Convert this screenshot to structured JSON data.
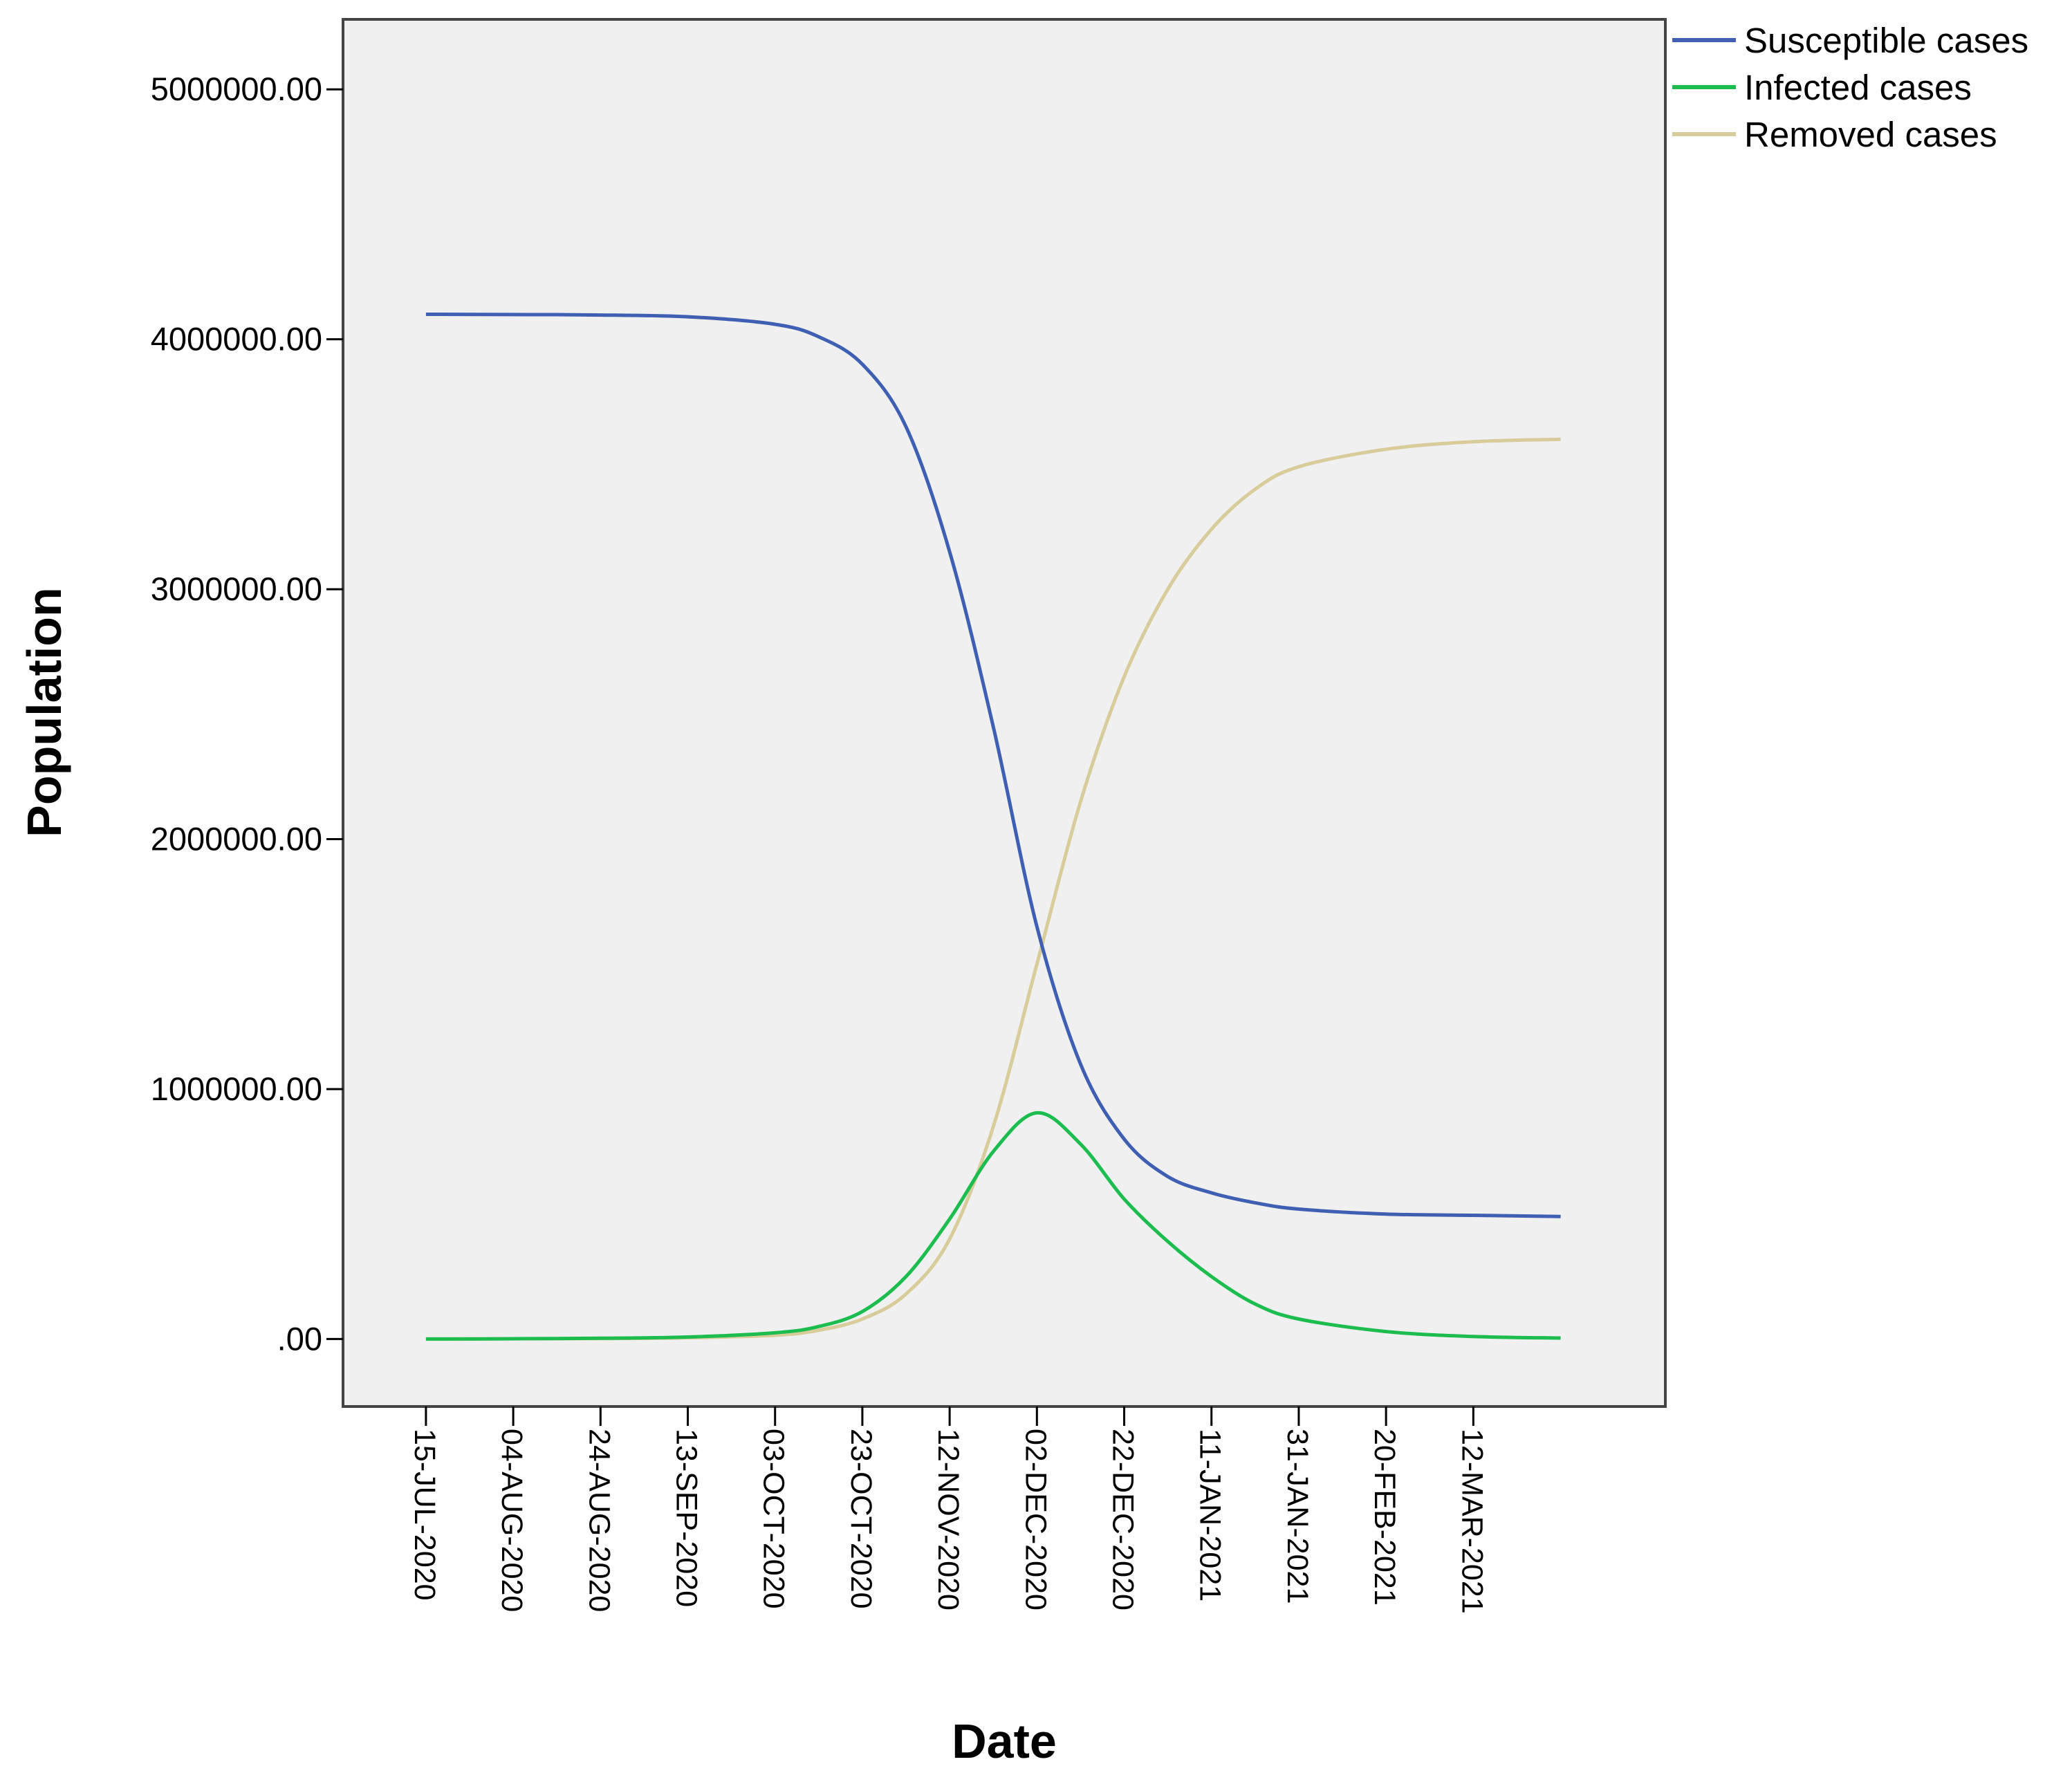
{
  "chart_data": {
    "type": "line",
    "xlabel": "Date",
    "ylabel": "Population",
    "ylim": [
      -270000,
      5280000
    ],
    "xlim": [
      "2020-06-26",
      "2021-04-25"
    ],
    "grid": false,
    "legend_position": "top-right",
    "plot_background": "#f0f0f0",
    "x_ticks": [
      "15-JUL-2020",
      "04-AUG-2020",
      "24-AUG-2020",
      "13-SEP-2020",
      "03-OCT-2020",
      "23-OCT-2020",
      "12-NOV-2020",
      "02-DEC-2020",
      "22-DEC-2020",
      "11-JAN-2021",
      "31-JAN-2021",
      "20-FEB-2021",
      "12-MAR-2021"
    ],
    "x_tick_dates": [
      "2020-07-15",
      "2020-08-04",
      "2020-08-24",
      "2020-09-13",
      "2020-10-03",
      "2020-10-23",
      "2020-11-12",
      "2020-12-02",
      "2020-12-22",
      "2021-01-11",
      "2021-01-31",
      "2021-02-20",
      "2021-03-12"
    ],
    "y_ticks": [
      ".00",
      "1000000.00",
      "2000000.00",
      "3000000.00",
      "4000000.00",
      "5000000.00"
    ],
    "y_tick_values": [
      0,
      1000000,
      2000000,
      3000000,
      4000000,
      5000000
    ],
    "series": [
      {
        "name": "Susceptible cases",
        "color": "#3f5fb3",
        "points": [
          [
            "2020-07-15",
            4100000
          ],
          [
            "2020-08-04",
            4099000
          ],
          [
            "2020-08-24",
            4097000
          ],
          [
            "2020-09-13",
            4090000
          ],
          [
            "2020-10-03",
            4060000
          ],
          [
            "2020-10-13",
            4010000
          ],
          [
            "2020-10-23",
            3900000
          ],
          [
            "2020-11-02",
            3650000
          ],
          [
            "2020-11-12",
            3150000
          ],
          [
            "2020-11-22",
            2450000
          ],
          [
            "2020-12-02",
            1650000
          ],
          [
            "2020-12-12",
            1100000
          ],
          [
            "2020-12-22",
            800000
          ],
          [
            "2021-01-01",
            650000
          ],
          [
            "2021-01-11",
            585000
          ],
          [
            "2021-01-21",
            545000
          ],
          [
            "2021-01-31",
            520000
          ],
          [
            "2021-02-20",
            500000
          ],
          [
            "2021-03-12",
            495000
          ],
          [
            "2021-04-01",
            490000
          ]
        ]
      },
      {
        "name": "Infected cases",
        "color": "#1cbd4e",
        "points": [
          [
            "2020-07-15",
            0
          ],
          [
            "2020-08-04",
            1000
          ],
          [
            "2020-08-24",
            3000
          ],
          [
            "2020-09-13",
            8000
          ],
          [
            "2020-10-03",
            25000
          ],
          [
            "2020-10-13",
            50000
          ],
          [
            "2020-10-23",
            110000
          ],
          [
            "2020-11-02",
            250000
          ],
          [
            "2020-11-12",
            480000
          ],
          [
            "2020-11-22",
            750000
          ],
          [
            "2020-12-02",
            905000
          ],
          [
            "2020-12-12",
            780000
          ],
          [
            "2020-12-22",
            560000
          ],
          [
            "2021-01-01",
            390000
          ],
          [
            "2021-01-11",
            250000
          ],
          [
            "2021-01-21",
            140000
          ],
          [
            "2021-01-31",
            80000
          ],
          [
            "2021-02-20",
            30000
          ],
          [
            "2021-03-12",
            10000
          ],
          [
            "2021-04-01",
            4000
          ]
        ]
      },
      {
        "name": "Removed cases",
        "color": "#d8cc9a",
        "points": [
          [
            "2020-07-15",
            0
          ],
          [
            "2020-08-04",
            1000
          ],
          [
            "2020-08-24",
            2000
          ],
          [
            "2020-09-13",
            5000
          ],
          [
            "2020-10-03",
            15000
          ],
          [
            "2020-10-13",
            35000
          ],
          [
            "2020-10-23",
            80000
          ],
          [
            "2020-11-02",
            180000
          ],
          [
            "2020-11-12",
            400000
          ],
          [
            "2020-11-22",
            850000
          ],
          [
            "2020-12-02",
            1500000
          ],
          [
            "2020-12-12",
            2150000
          ],
          [
            "2020-12-22",
            2650000
          ],
          [
            "2021-01-01",
            3000000
          ],
          [
            "2021-01-11",
            3240000
          ],
          [
            "2021-01-21",
            3400000
          ],
          [
            "2021-01-31",
            3490000
          ],
          [
            "2021-02-20",
            3560000
          ],
          [
            "2021-03-12",
            3590000
          ],
          [
            "2021-04-01",
            3600000
          ]
        ]
      }
    ]
  }
}
